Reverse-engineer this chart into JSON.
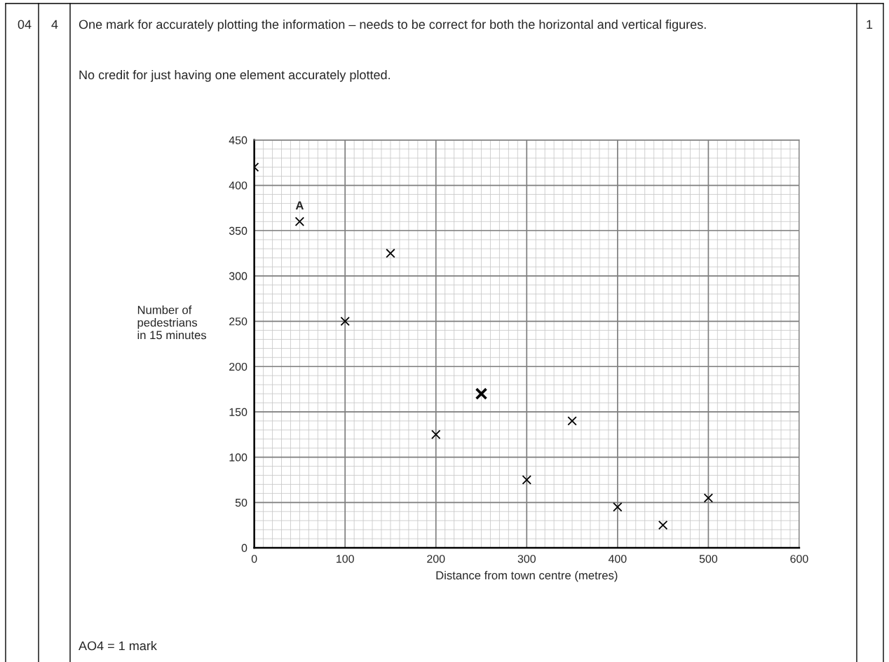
{
  "chart_data": {
    "type": "scatter",
    "xlabel": "Distance from town centre (metres)",
    "ylabel": "Number of\npedestrians\nin 15 minutes",
    "series": [
      {
        "color": "#000000",
        "x": [
          0,
          50,
          100,
          150,
          200,
          300,
          350,
          400,
          450,
          500
        ],
        "values": [
          420,
          360,
          250,
          325,
          125,
          75,
          140,
          45,
          25,
          55
        ]
      },
      {
        "color": "#000000",
        "x": [
          250
        ],
        "values": [
          170
        ]
      }
    ],
    "xlim": [
      0,
      600
    ],
    "xticks": [
      0,
      100,
      200,
      300,
      400,
      500,
      600
    ],
    "ylim": [
      0,
      450
    ],
    "yticks": [
      0,
      50,
      100,
      150,
      200,
      250,
      300,
      350,
      400,
      450
    ],
    "grid": true,
    "marker": "cross",
    "annotations": [
      {
        "text": "A",
        "x": 50,
        "y": 360
      },
      "04",
      "4",
      "One mark for accurately plotting the information – needs to be correct for both the horizontal and vertical figures.",
      "No credit for just having one element accurately plotted.",
      "AO4 = 1 mark",
      "1"
    ]
  }
}
